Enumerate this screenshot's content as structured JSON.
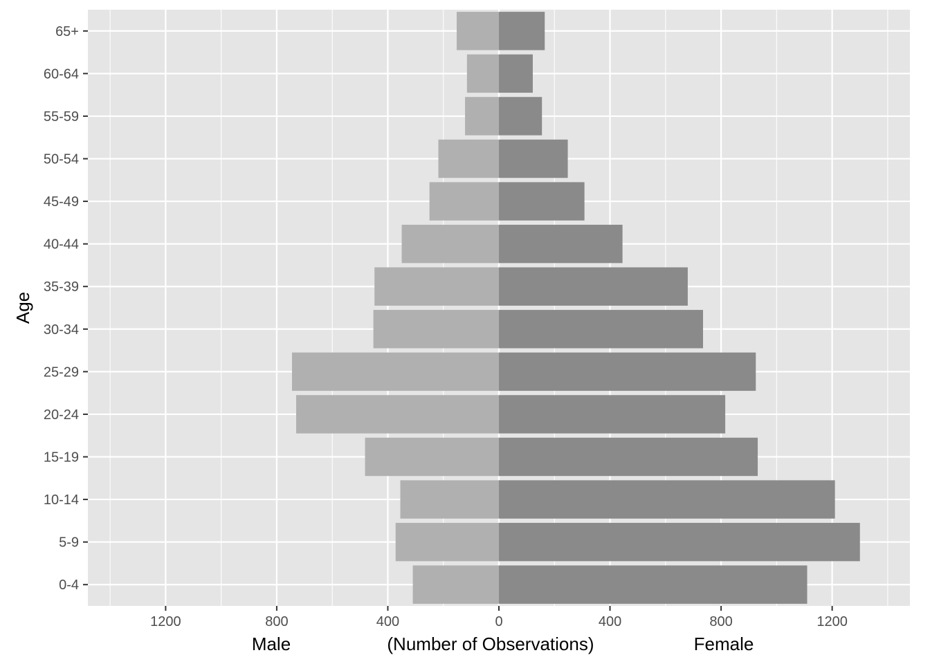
{
  "chart_data": {
    "type": "bar",
    "orientation": "horizontal",
    "categories": [
      "0-4",
      "5-9",
      "10-14",
      "15-19",
      "20-24",
      "25-29",
      "30-34",
      "35-39",
      "40-44",
      "45-49",
      "50-54",
      "55-59",
      "60-64",
      "65+"
    ],
    "series": [
      {
        "name": "Male",
        "values": [
          310,
          372,
          355,
          482,
          730,
          745,
          452,
          448,
          350,
          250,
          218,
          122,
          115,
          152
        ],
        "color": "#b0b0b0"
      },
      {
        "name": "Female",
        "values": [
          1110,
          1300,
          1210,
          932,
          815,
          925,
          735,
          680,
          445,
          308,
          248,
          155,
          122,
          165
        ],
        "color": "#8a8a8a"
      }
    ],
    "xlim": [
      -1480,
      1480
    ],
    "xticks": [
      -1200,
      -800,
      -400,
      0,
      400,
      800,
      1200
    ],
    "xtick_labels": [
      "1200",
      "800",
      "400",
      "0",
      "400",
      "800",
      "1200"
    ],
    "ylabel": "Age",
    "xlabel_left": "Male",
    "xlabel_center": "(Number of Observations)",
    "xlabel_right": "Female",
    "grid": true,
    "panel_background": "#e5e5e5",
    "grid_color": "#ffffff",
    "legend": "none"
  }
}
